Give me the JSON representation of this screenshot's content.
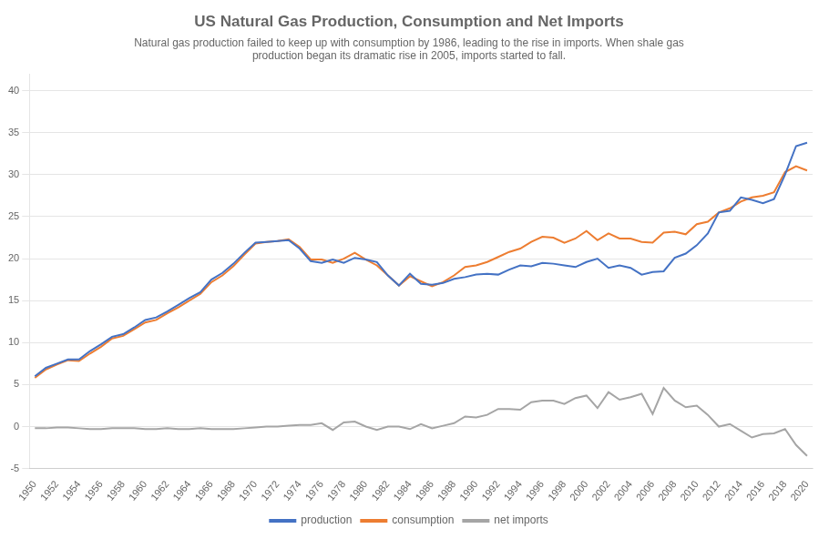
{
  "chart_data": {
    "type": "line",
    "title": "US Natural Gas Production, Consumption and Net Imports",
    "subtitle": "Natural gas production failed to keep up with consumption by 1986, leading to the rise in imports. When shale gas\nproduction began its dramatic rise in 2005, imports started to fall.",
    "x": [
      1950,
      1951,
      1952,
      1953,
      1954,
      1955,
      1956,
      1957,
      1958,
      1959,
      1960,
      1961,
      1962,
      1963,
      1964,
      1965,
      1966,
      1967,
      1968,
      1969,
      1970,
      1971,
      1972,
      1973,
      1974,
      1975,
      1976,
      1977,
      1978,
      1979,
      1980,
      1981,
      1982,
      1983,
      1984,
      1985,
      1986,
      1987,
      1988,
      1989,
      1990,
      1991,
      1992,
      1993,
      1994,
      1995,
      1996,
      1997,
      1998,
      1999,
      2000,
      2001,
      2002,
      2003,
      2004,
      2005,
      2006,
      2007,
      2008,
      2009,
      2010,
      2011,
      2012,
      2013,
      2014,
      2015,
      2016,
      2017,
      2018,
      2019,
      2020
    ],
    "series": [
      {
        "name": "production",
        "color": "#4472c4",
        "values": [
          6.0,
          7.0,
          7.5,
          8.0,
          8.0,
          9.0,
          9.8,
          10.7,
          11.0,
          11.8,
          12.7,
          13.0,
          13.7,
          14.5,
          15.3,
          16.0,
          17.5,
          18.3,
          19.4,
          20.7,
          21.9,
          22.0,
          22.1,
          22.2,
          21.2,
          19.7,
          19.5,
          19.9,
          19.5,
          20.1,
          19.9,
          19.6,
          18.0,
          16.8,
          18.2,
          17.0,
          16.9,
          17.1,
          17.6,
          17.8,
          18.1,
          18.2,
          18.1,
          18.7,
          19.2,
          19.1,
          19.5,
          19.4,
          19.2,
          19.0,
          19.6,
          20.0,
          18.9,
          19.2,
          18.9,
          18.1,
          18.4,
          18.5,
          20.1,
          20.6,
          21.6,
          23.0,
          25.5,
          25.7,
          27.3,
          27.0,
          26.6,
          27.1,
          30.0,
          33.4,
          33.8
        ]
      },
      {
        "name": "consumption",
        "color": "#ed7d31",
        "values": [
          5.8,
          6.8,
          7.4,
          7.9,
          7.8,
          8.7,
          9.5,
          10.5,
          10.8,
          11.6,
          12.4,
          12.7,
          13.5,
          14.2,
          15.0,
          15.8,
          17.2,
          18.0,
          19.1,
          20.5,
          21.8,
          22.0,
          22.1,
          22.3,
          21.4,
          19.9,
          19.9,
          19.5,
          20.0,
          20.7,
          19.9,
          19.2,
          18.0,
          16.8,
          17.9,
          17.3,
          16.7,
          17.2,
          18.0,
          19.0,
          19.2,
          19.6,
          20.2,
          20.8,
          21.2,
          22.0,
          22.6,
          22.5,
          21.9,
          22.4,
          23.3,
          22.2,
          23.0,
          22.4,
          22.4,
          22.0,
          21.9,
          23.1,
          23.2,
          22.9,
          24.1,
          24.4,
          25.5,
          26.0,
          26.8,
          27.3,
          27.5,
          27.9,
          30.3,
          31.0,
          30.5
        ]
      },
      {
        "name": "net imports",
        "color": "#a5a5a5",
        "values": [
          -0.2,
          -0.2,
          -0.1,
          -0.1,
          -0.2,
          -0.3,
          -0.3,
          -0.2,
          -0.2,
          -0.2,
          -0.3,
          -0.3,
          -0.2,
          -0.3,
          -0.3,
          -0.2,
          -0.3,
          -0.3,
          -0.3,
          -0.2,
          -0.1,
          0.0,
          0.0,
          0.1,
          0.2,
          0.2,
          0.4,
          -0.4,
          0.5,
          0.6,
          0.0,
          -0.4,
          0.0,
          0.0,
          -0.3,
          0.3,
          -0.2,
          0.1,
          0.4,
          1.2,
          1.1,
          1.4,
          2.1,
          2.1,
          2.0,
          2.9,
          3.1,
          3.1,
          2.7,
          3.4,
          3.7,
          2.2,
          4.1,
          3.2,
          3.5,
          3.9,
          1.5,
          4.6,
          3.1,
          2.3,
          2.5,
          1.4,
          0.0,
          0.3,
          -0.5,
          -1.3,
          -0.9,
          -0.8,
          -0.3,
          -2.2,
          -3.5
        ]
      }
    ],
    "xlim": [
      1949.5,
      2020.5
    ],
    "xticks": [
      1950,
      1952,
      1954,
      1956,
      1958,
      1960,
      1962,
      1964,
      1966,
      1968,
      1970,
      1972,
      1974,
      1976,
      1978,
      1980,
      1982,
      1984,
      1986,
      1988,
      1990,
      1992,
      1994,
      1996,
      1998,
      2000,
      2002,
      2004,
      2006,
      2008,
      2010,
      2012,
      2014,
      2016,
      2018,
      2020
    ],
    "ylim": [
      -5,
      42
    ],
    "yticks": [
      -5,
      0,
      5,
      10,
      15,
      20,
      25,
      30,
      35,
      40
    ],
    "grid": "y",
    "legend": "bottom"
  }
}
